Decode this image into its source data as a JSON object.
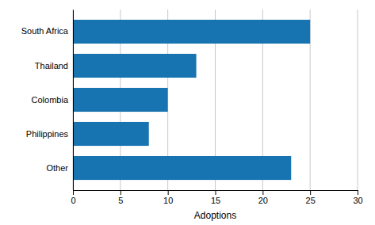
{
  "chart_data": {
    "type": "bar",
    "orientation": "horizontal",
    "categories": [
      "South Africa",
      "Thailand",
      "Colombia",
      "Philippines",
      "Other"
    ],
    "values": [
      25,
      13,
      10,
      8,
      23
    ],
    "color": "#1874b0",
    "xlabel": "Adoptions",
    "xlim": [
      0,
      30
    ],
    "xticks": [
      0,
      5,
      10,
      15,
      20,
      25,
      30
    ],
    "grid": true
  }
}
